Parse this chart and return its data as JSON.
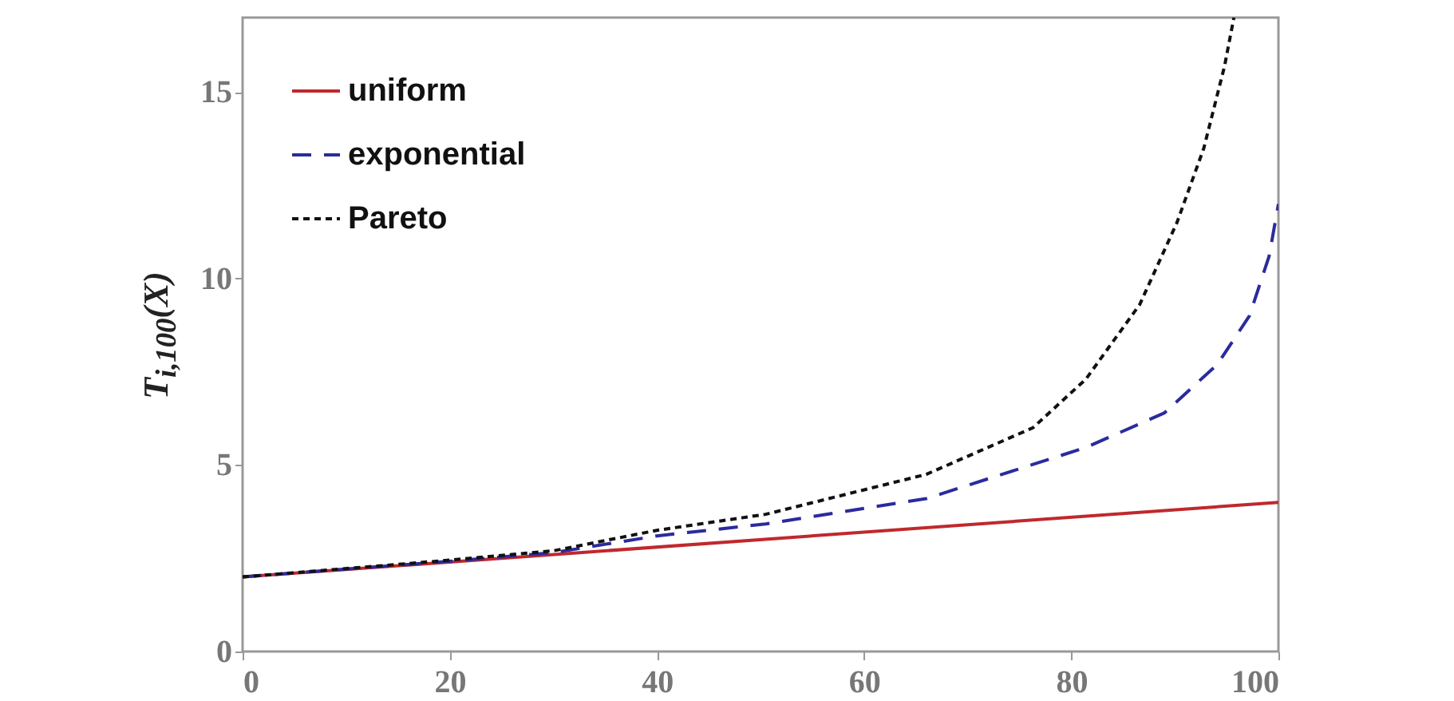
{
  "chart_data": {
    "type": "line",
    "ylabel": "T$_{i,100}$(X)",
    "xlim": [
      0,
      100
    ],
    "ylim": [
      0,
      17
    ],
    "xticks": [
      0,
      20,
      40,
      60,
      80,
      100
    ],
    "yticks": [
      0,
      5,
      10,
      15
    ],
    "grid": false,
    "legend": "top left",
    "marker": "none",
    "series": [
      {
        "name": "uniform",
        "color": "#c0282d",
        "line_style": "solid",
        "x": [
          0,
          100
        ],
        "values": [
          2,
          4
        ]
      },
      {
        "name": "exponential",
        "color": "#2b2b9e",
        "line_style": "dashed",
        "x": [
          0,
          20,
          30,
          40,
          50.5,
          66,
          81.4,
          89,
          94.1,
          97.2,
          99.1,
          100
        ],
        "values": [
          2,
          2.42,
          2.65,
          3.1,
          3.42,
          4.1,
          5.47,
          6.4,
          7.7,
          9.0,
          10.6,
          12.0
        ]
      },
      {
        "name": "Pareto",
        "color": "#111111",
        "line_style": "dotted",
        "x": [
          0,
          20,
          30,
          40,
          50.5,
          66,
          76.3,
          81.4,
          86.6,
          90.2,
          92.8,
          94.8,
          95.7
        ],
        "values": [
          2,
          2.45,
          2.7,
          3.25,
          3.68,
          4.75,
          6.0,
          7.3,
          9.3,
          11.5,
          13.5,
          15.7,
          17
        ]
      }
    ]
  }
}
